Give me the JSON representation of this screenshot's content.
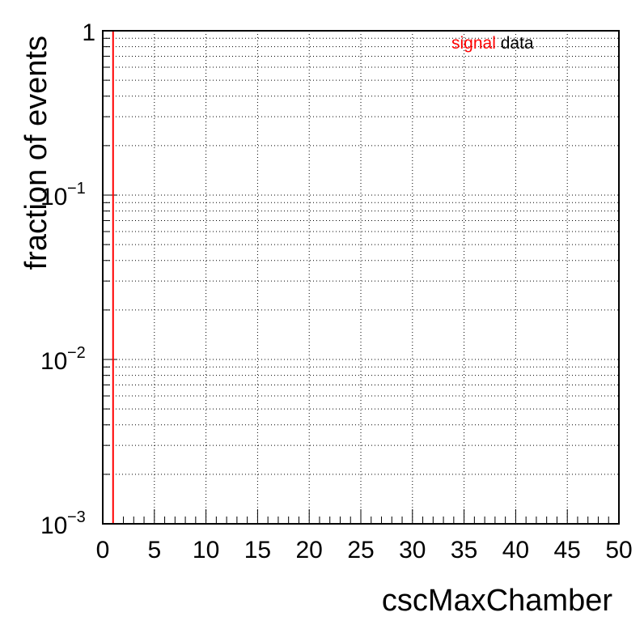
{
  "chart_data": {
    "type": "line",
    "xlabel": "cscMaxChamber",
    "ylabel": "fraction of events",
    "xlim": [
      0,
      50
    ],
    "ylim": [
      0.001,
      1
    ],
    "yscale": "log",
    "grid": true,
    "legend_position": "top-right",
    "x_ticks": [
      "0",
      "5",
      "10",
      "15",
      "20",
      "25",
      "30",
      "35",
      "40",
      "45",
      "50"
    ],
    "y_ticks": [
      {
        "value": 0.001,
        "base": "10",
        "exp": "−3"
      },
      {
        "value": 0.01,
        "base": "10",
        "exp": "−2"
      },
      {
        "value": 0.1,
        "base": "10",
        "exp": "−1"
      },
      {
        "value": 1,
        "base": "1",
        "exp": ""
      }
    ],
    "series": [
      {
        "name": "signal",
        "color": "#ff0000",
        "bin_edges": [
          0,
          1
        ],
        "values": [
          1
        ]
      },
      {
        "name": "data",
        "color": "#000000",
        "bin_edges": [],
        "values": []
      }
    ]
  }
}
